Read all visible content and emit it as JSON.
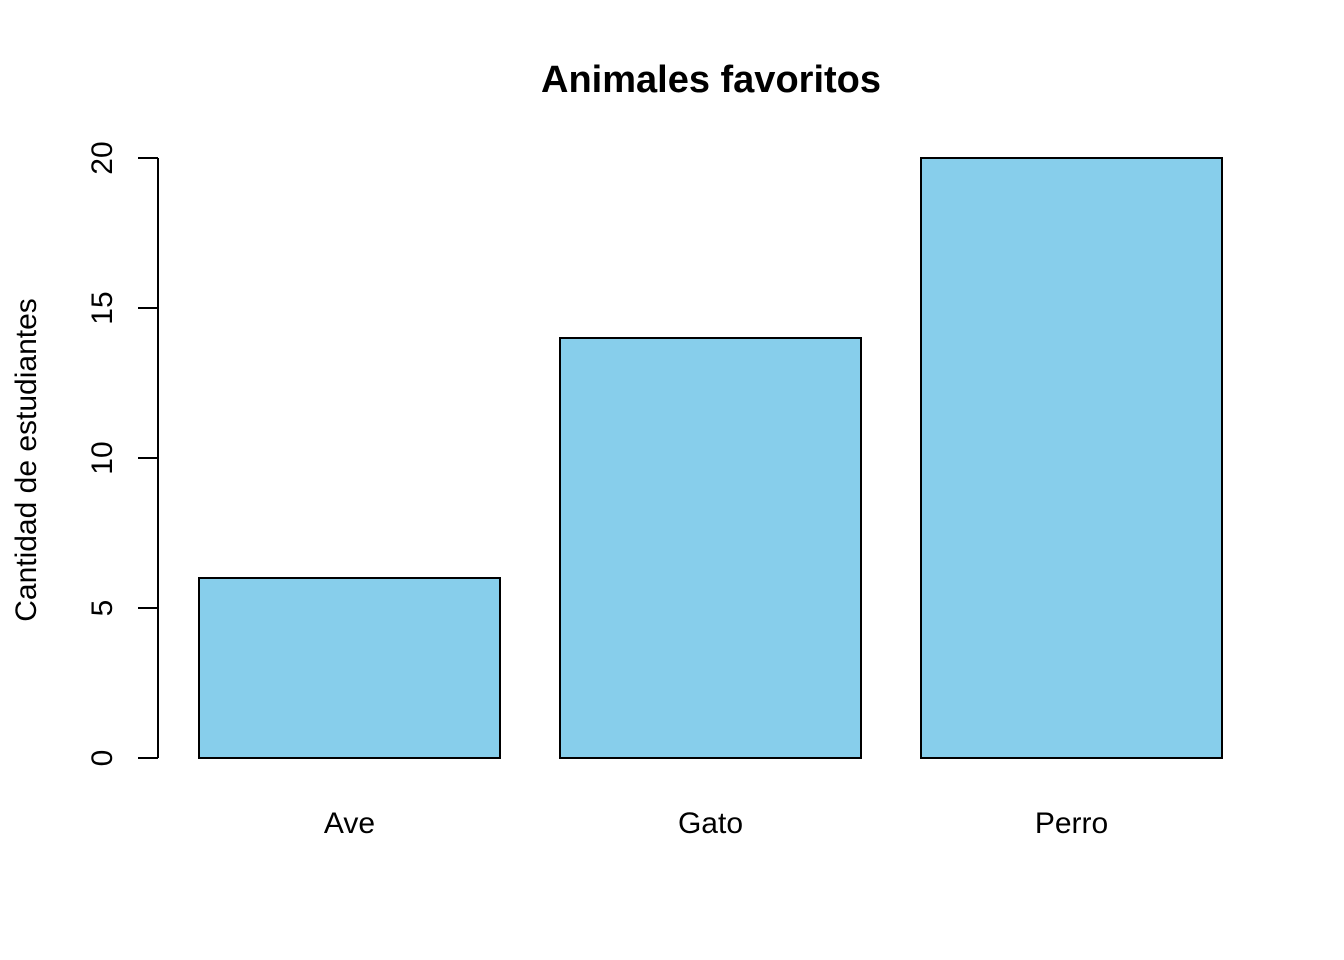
{
  "chart_data": {
    "type": "bar",
    "title": "Animales favoritos",
    "xlabel": "",
    "ylabel": "Cantidad de estudiantes",
    "categories": [
      "Ave",
      "Gato",
      "Perro"
    ],
    "values": [
      6,
      14,
      20
    ],
    "ylim": [
      0,
      20
    ],
    "yticks": [
      0,
      5,
      10,
      15,
      20
    ],
    "yticks_rotated": true,
    "grid": false,
    "legend": "none",
    "colors": {
      "bar_fill": "#87CEEB",
      "bar_stroke": "#000000",
      "text": "#000000"
    }
  }
}
